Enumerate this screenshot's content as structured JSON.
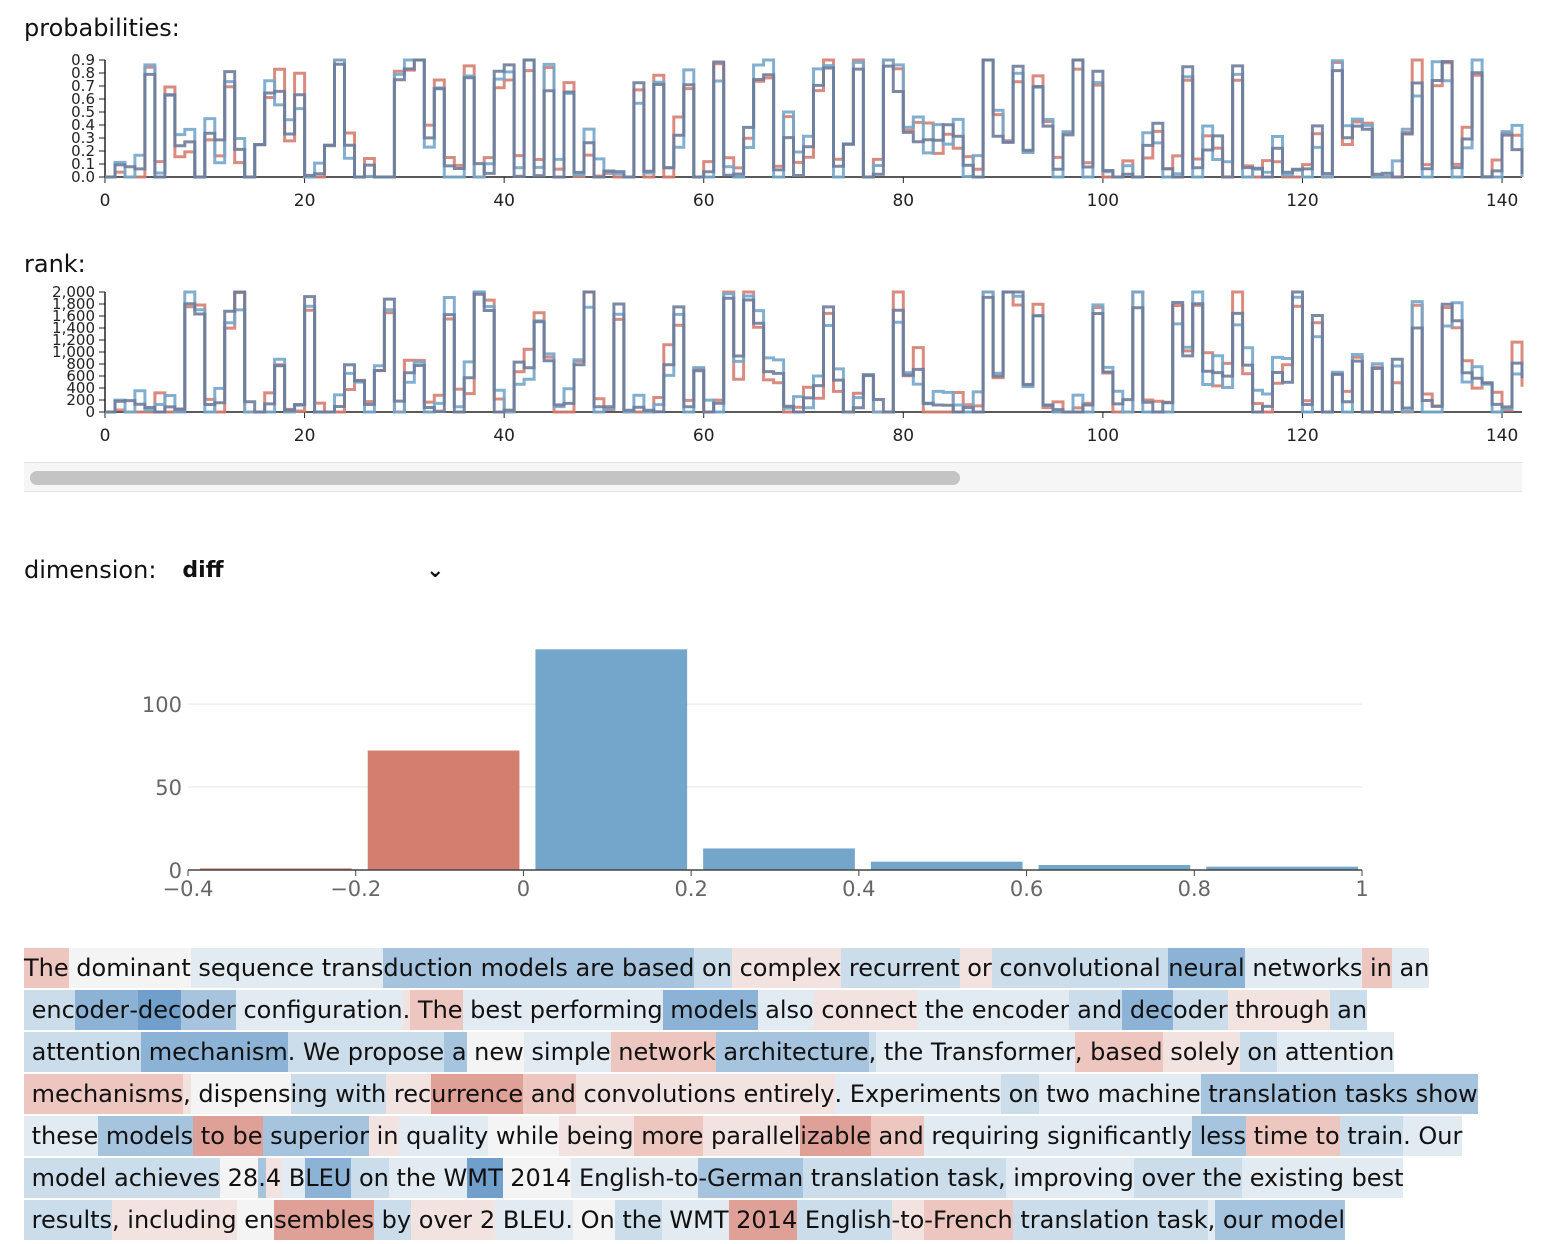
{
  "probabilities": {
    "label": "probabilities:",
    "y_ticks": [
      "0.0",
      "0.1",
      "0.2",
      "0.3",
      "0.4",
      "0.5",
      "0.6",
      "0.7",
      "0.8",
      "0.9"
    ],
    "x_ticks": [
      "0",
      "20",
      "40",
      "60",
      "80",
      "100",
      "120",
      "140"
    ]
  },
  "rank": {
    "label": "rank:",
    "y_ticks": [
      "0",
      "200",
      "400",
      "600",
      "800",
      "1,000",
      "1,200",
      "1,400",
      "1,600",
      "1,800",
      "2,000"
    ],
    "x_ticks": [
      "0",
      "20",
      "40",
      "60",
      "80",
      "100",
      "120",
      "140"
    ]
  },
  "dimension": {
    "label": "dimension:",
    "selected": "diff"
  },
  "colors": {
    "red": "#d47e70",
    "blue": "#74a6cb",
    "dark": "#6e7c9b"
  },
  "chart_data": {
    "type": "bar",
    "x_ticks": [
      "−0.4",
      "−0.2",
      "0",
      "0.2",
      "0.4",
      "0.6",
      "0.8",
      "1"
    ],
    "y_ticks": [
      "0",
      "50",
      "100"
    ],
    "xlim": [
      -0.4,
      1.0
    ],
    "ylim": [
      0,
      135
    ],
    "grid": true,
    "bins": [
      {
        "x0": -0.4,
        "x1": -0.2,
        "value": 1,
        "color": "red"
      },
      {
        "x0": -0.2,
        "x1": 0.0,
        "value": 72,
        "color": "red"
      },
      {
        "x0": 0.0,
        "x1": 0.2,
        "value": 133,
        "color": "blue"
      },
      {
        "x0": 0.2,
        "x1": 0.4,
        "value": 13,
        "color": "blue"
      },
      {
        "x0": 0.4,
        "x1": 0.6,
        "value": 5,
        "color": "blue"
      },
      {
        "x0": 0.6,
        "x1": 0.8,
        "value": 3,
        "color": "blue"
      },
      {
        "x0": 0.8,
        "x1": 1.0,
        "value": 2,
        "color": "blue"
      }
    ]
  },
  "text_lines": [
    [
      [
        "The",
        "r2"
      ],
      [
        " dominant",
        "n"
      ],
      [
        " sequence",
        "b1"
      ],
      [
        " trans",
        "b1"
      ],
      [
        "duction",
        "b3"
      ],
      [
        " models",
        "b3"
      ],
      [
        " are",
        "b3"
      ],
      [
        " based",
        "b3"
      ],
      [
        " on",
        "b2"
      ],
      [
        " complex",
        "r1"
      ],
      [
        " recurrent",
        "b2"
      ],
      [
        " or",
        "r1"
      ],
      [
        " convolutional",
        "b2"
      ],
      [
        " ",
        "b2"
      ],
      [
        "neural",
        "b4"
      ],
      [
        " networks",
        "b1"
      ],
      [
        " in",
        "r2"
      ],
      [
        " an",
        "b1"
      ]
    ],
    [
      [
        " enc",
        "b2"
      ],
      [
        "oder",
        "b4"
      ],
      [
        "-",
        "b4"
      ],
      [
        "dec",
        "b5"
      ],
      [
        "oder",
        "b3"
      ],
      [
        " configuration",
        "b1"
      ],
      [
        ".",
        "r1"
      ],
      [
        " The",
        "r2"
      ],
      [
        " best",
        "b1"
      ],
      [
        " performing",
        "b1"
      ],
      [
        " models",
        "b4"
      ],
      [
        " also",
        "b1"
      ],
      [
        " connect",
        "r1"
      ],
      [
        " the",
        "b1"
      ],
      [
        " encoder",
        "b1"
      ],
      [
        " and",
        "b2"
      ],
      [
        " dec",
        "b4"
      ],
      [
        "oder",
        "b2"
      ],
      [
        " through",
        "r1"
      ],
      [
        " an",
        "b2"
      ]
    ],
    [
      [
        " attention",
        "b2"
      ],
      [
        " mechanism",
        "b4"
      ],
      [
        ".",
        "b2"
      ],
      [
        " We",
        "b2"
      ],
      [
        " propose",
        "b2"
      ],
      [
        " a",
        "b3"
      ],
      [
        " new",
        "n"
      ],
      [
        " simple",
        "b1"
      ],
      [
        " network",
        "r2"
      ],
      [
        " architecture",
        "b3"
      ],
      [
        ",",
        "b2"
      ],
      [
        " the",
        "b1"
      ],
      [
        " Transformer",
        "b1"
      ],
      [
        ",",
        "r2"
      ],
      [
        " based",
        "r2"
      ],
      [
        " solely",
        "r1"
      ],
      [
        " on",
        "b2"
      ],
      [
        " attention",
        "b1"
      ]
    ],
    [
      [
        " mechanisms",
        "r2"
      ],
      [
        ",",
        "r1"
      ],
      [
        " dispens",
        "n"
      ],
      [
        "ing",
        "b2"
      ],
      [
        " with",
        "b2"
      ],
      [
        " rec",
        "r1"
      ],
      [
        "urrence",
        "r3"
      ],
      [
        " and",
        "r2"
      ],
      [
        " convolutions",
        "r1"
      ],
      [
        " entirely",
        "r1"
      ],
      [
        ".",
        "b1"
      ],
      [
        " Experiments",
        "b1"
      ],
      [
        " on",
        "b2"
      ],
      [
        " two",
        "b1"
      ],
      [
        " machine",
        "b1"
      ],
      [
        " translation",
        "b3"
      ],
      [
        " tasks",
        "b3"
      ],
      [
        " show",
        "b3"
      ]
    ],
    [
      [
        " these",
        "b1"
      ],
      [
        " models",
        "b3"
      ],
      [
        " to",
        "r3"
      ],
      [
        " be",
        "r3"
      ],
      [
        " superior",
        "b3"
      ],
      [
        " in",
        "r1"
      ],
      [
        " quality",
        "b1"
      ],
      [
        " while",
        "n"
      ],
      [
        " being",
        "r1"
      ],
      [
        " more",
        "r2"
      ],
      [
        " parallel",
        "r1"
      ],
      [
        "izable",
        "r3"
      ],
      [
        " and",
        "r2"
      ],
      [
        " requiring",
        "b1"
      ],
      [
        " significantly",
        "b1"
      ],
      [
        " less",
        "b3"
      ],
      [
        " time",
        "r2"
      ],
      [
        " to",
        "r2"
      ],
      [
        " train",
        "b2"
      ],
      [
        ".",
        "b1"
      ],
      [
        " Our",
        "b1"
      ]
    ],
    [
      [
        " model",
        "b2"
      ],
      [
        " achieves",
        "b2"
      ],
      [
        " 28",
        "n"
      ],
      [
        ".",
        "b3"
      ],
      [
        "4",
        "r1"
      ],
      [
        " B",
        "b1"
      ],
      [
        "LEU",
        "b4"
      ],
      [
        " on",
        "b2"
      ],
      [
        " the",
        "b1"
      ],
      [
        " W",
        "b1"
      ],
      [
        "MT",
        "b5"
      ],
      [
        " 2014",
        "n"
      ],
      [
        " English",
        "b1"
      ],
      [
        "-",
        "b1"
      ],
      [
        "to",
        "b1"
      ],
      [
        "-",
        "b3"
      ],
      [
        "German",
        "b3"
      ],
      [
        " translation",
        "b2"
      ],
      [
        " task",
        "b2"
      ],
      [
        ",",
        "b2"
      ],
      [
        " improving",
        "b1"
      ],
      [
        " over",
        "b2"
      ],
      [
        " the",
        "b2"
      ],
      [
        " existing",
        "b1"
      ],
      [
        " best",
        "b1"
      ]
    ],
    [
      [
        " results",
        "b2"
      ],
      [
        ",",
        "r1"
      ],
      [
        " including",
        "r1"
      ],
      [
        " en",
        "n"
      ],
      [
        "sembles",
        "r3"
      ],
      [
        " by",
        "b2"
      ],
      [
        " over",
        "r1"
      ],
      [
        " 2",
        "r1"
      ],
      [
        " BLEU",
        "b1"
      ],
      [
        ".",
        "b1"
      ],
      [
        " On",
        "n"
      ],
      [
        " the",
        "b2"
      ],
      [
        " WMT",
        "b1"
      ],
      [
        " 2014",
        "r3"
      ],
      [
        " English",
        "b2"
      ],
      [
        "-",
        "r1"
      ],
      [
        "to",
        "r1"
      ],
      [
        "-",
        "r2"
      ],
      [
        "French",
        "r2"
      ],
      [
        " translation",
        "b2"
      ],
      [
        " task",
        "b2"
      ],
      [
        ",",
        "b1"
      ],
      [
        " our",
        "b3"
      ],
      [
        " model",
        "b3"
      ]
    ]
  ]
}
